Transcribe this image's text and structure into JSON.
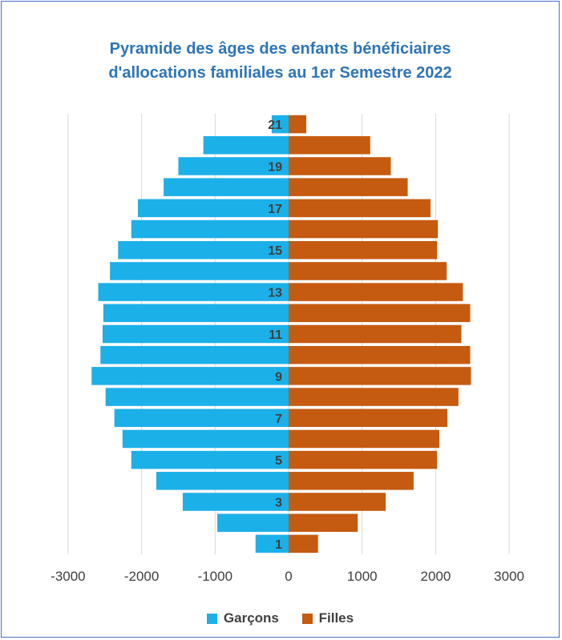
{
  "chart_data": {
    "type": "bar",
    "orientation": "horizontal-pyramid",
    "title_lines": [
      "Pyramide des âges des enfants bénéficiaires",
      "d'allocations familiales au 1er Semestre 2022"
    ],
    "categories": [
      "1",
      "2",
      "3",
      "4",
      "5",
      "6",
      "7",
      "8",
      "9",
      "10",
      "11",
      "12",
      "13",
      "14",
      "15",
      "16",
      "17",
      "18",
      "19",
      "20",
      "21"
    ],
    "category_labels_shown": [
      "1",
      "3",
      "5",
      "7",
      "9",
      "11",
      "13",
      "15",
      "17",
      "19",
      "21"
    ],
    "series": [
      {
        "name": "Garçons",
        "color": "#1cb0e8",
        "values": [
          -450,
          -970,
          -1440,
          -1800,
          -2140,
          -2260,
          -2370,
          -2490,
          -2680,
          -2560,
          -2530,
          -2520,
          -2590,
          -2430,
          -2320,
          -2140,
          -2050,
          -1700,
          -1500,
          -1160,
          -230
        ]
      },
      {
        "name": "Filles",
        "color": "#c55a11",
        "values": [
          400,
          940,
          1320,
          1700,
          2020,
          2050,
          2160,
          2310,
          2480,
          2470,
          2350,
          2470,
          2370,
          2150,
          2020,
          2030,
          1930,
          1620,
          1390,
          1110,
          240
        ]
      }
    ],
    "xlim": [
      -3000,
      3000
    ],
    "x_ticks": [
      "-3000",
      "-2000",
      "-1000",
      "0",
      "1000",
      "2000",
      "3000"
    ],
    "x_tick_values": [
      -3000,
      -2000,
      -1000,
      0,
      1000,
      2000,
      3000
    ],
    "grid": "vertical",
    "legend_position": "bottom"
  }
}
